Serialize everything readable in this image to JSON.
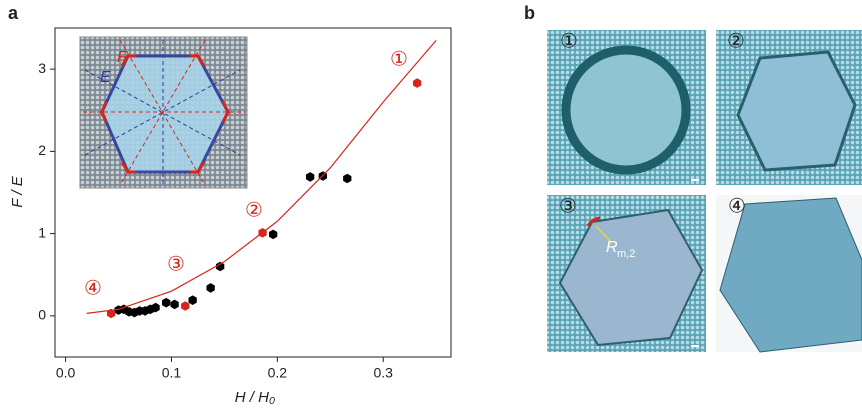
{
  "panel_labels": [
    "a",
    "b"
  ],
  "inset_labels": [
    "F",
    "E"
  ],
  "images": [
    {
      "label": "①"
    },
    {
      "label": "②"
    },
    {
      "label": "③",
      "annotation": "R",
      "annotation_sub": "m,2"
    },
    {
      "label": "④"
    }
  ],
  "chart_data": {
    "type": "scatter",
    "x_label": "H / H₀",
    "y_label": "F / E",
    "xlim": [
      -0.01,
      0.364
    ],
    "ylim": [
      -0.5,
      3.5
    ],
    "xticks": [
      {
        "value": 0,
        "label": "0.0"
      },
      0.1,
      0.2,
      0.3
    ],
    "yticks": [
      0,
      1,
      2,
      3
    ],
    "annotations": [
      "①",
      "②",
      "③",
      "④"
    ],
    "series": [
      {
        "color": "#000000",
        "x": [
          0.05,
          0.055,
          0.06,
          0.065,
          0.07,
          0.075,
          0.08,
          0.085,
          0.095,
          0.103,
          0.12,
          0.137,
          0.146,
          0.196,
          0.231,
          0.243,
          0.266
        ],
        "values": [
          0.07,
          0.08,
          0.05,
          0.04,
          0.06,
          0.06,
          0.08,
          0.1,
          0.16,
          0.14,
          0.19,
          0.34,
          0.6,
          0.99,
          1.69,
          1.7,
          1.67
        ]
      },
      {
        "color": "#d9241c",
        "x": [
          0.043,
          0.113,
          0.186,
          0.332
        ],
        "values": [
          0.03,
          0.12,
          1.01,
          2.83
        ]
      },
      {
        "color": "#d9241c",
        "mode": "line",
        "x": [
          0.02,
          0.05,
          0.1,
          0.15,
          0.2,
          0.25,
          0.3,
          0.35
        ],
        "values": [
          0.03,
          0.08,
          0.3,
          0.66,
          1.15,
          1.8,
          2.6,
          3.35
        ]
      }
    ]
  }
}
